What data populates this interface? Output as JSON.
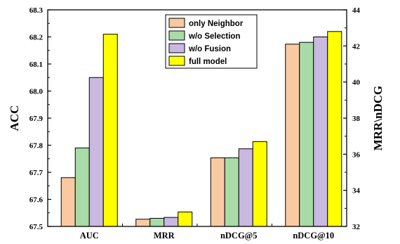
{
  "chart_data": {
    "type": "bar",
    "categories": [
      "AUC",
      "MRR",
      "nDCG@5",
      "nDCG@10"
    ],
    "series": [
      {
        "name": "only Neighbor",
        "color": "#f9c9a2",
        "values": [
          67.68,
          32.4,
          35.8,
          42.1
        ]
      },
      {
        "name": "w/o Selection",
        "color": "#a8dba7",
        "values": [
          67.79,
          32.45,
          35.8,
          42.2
        ]
      },
      {
        "name": "w/o Fusion",
        "color": "#c9b8e0",
        "values": [
          68.05,
          32.5,
          36.3,
          42.5
        ]
      },
      {
        "name": "full model",
        "color": "#ffff00",
        "values": [
          68.21,
          32.8,
          36.7,
          42.8
        ]
      }
    ],
    "axis_assignment": [
      "left",
      "right",
      "right",
      "right"
    ],
    "ylabel": "ACC",
    "y2label": "MRR\\nDCG",
    "ylim": [
      67.5,
      68.3
    ],
    "y2lim": [
      32,
      44
    ],
    "yticks": [
      "67.5",
      "67.6",
      "67.7",
      "67.8",
      "67.9",
      "68.0",
      "68.1",
      "68.2",
      "68.3"
    ],
    "y2ticks": [
      "32",
      "34",
      "36",
      "38",
      "40",
      "42",
      "44"
    ],
    "legend_position": "top-center",
    "grid": false
  }
}
